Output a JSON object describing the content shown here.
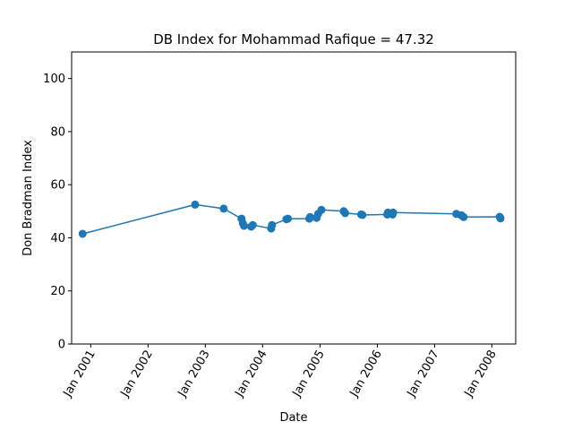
{
  "chart_data": {
    "type": "line",
    "title": "DB Index for Mohammad Rafique = 47.32",
    "xlabel": "Date",
    "ylabel": "Don Bradman Index",
    "ylim": [
      0,
      110
    ],
    "xlim": [
      "2000-09-01",
      "2008-06-01"
    ],
    "x_ticks": [
      {
        "date": "2001-01-01",
        "label": "Jan 2001"
      },
      {
        "date": "2002-01-01",
        "label": "Jan 2002"
      },
      {
        "date": "2003-01-01",
        "label": "Jan 2003"
      },
      {
        "date": "2004-01-01",
        "label": "Jan 2004"
      },
      {
        "date": "2005-01-01",
        "label": "Jan 2005"
      },
      {
        "date": "2006-01-01",
        "label": "Jan 2006"
      },
      {
        "date": "2007-01-01",
        "label": "Jan 2007"
      },
      {
        "date": "2008-01-01",
        "label": "Jan 2008"
      }
    ],
    "y_ticks": [
      0,
      20,
      40,
      60,
      80,
      100
    ],
    "grid": false,
    "color": "#1f77b4",
    "series": [
      {
        "points": [
          {
            "x": "2000-11-10",
            "y": 41.5
          },
          {
            "x": "2002-10-28",
            "y": 52.5
          },
          {
            "x": "2003-04-28",
            "y": 51.0
          },
          {
            "x": "2003-08-20",
            "y": 47.2
          },
          {
            "x": "2003-08-28",
            "y": 45.5
          },
          {
            "x": "2003-09-05",
            "y": 44.5
          },
          {
            "x": "2003-10-20",
            "y": 44.2
          },
          {
            "x": "2003-10-30",
            "y": 44.8
          },
          {
            "x": "2004-02-25",
            "y": 43.5
          },
          {
            "x": "2004-03-01",
            "y": 44.8
          },
          {
            "x": "2004-06-01",
            "y": 47.0
          },
          {
            "x": "2004-06-10",
            "y": 47.2
          },
          {
            "x": "2004-10-25",
            "y": 47.2
          },
          {
            "x": "2004-10-30",
            "y": 47.8
          },
          {
            "x": "2004-12-10",
            "y": 47.5
          },
          {
            "x": "2004-12-20",
            "y": 49.0
          },
          {
            "x": "2005-01-10",
            "y": 50.5
          },
          {
            "x": "2005-06-01",
            "y": 50.0
          },
          {
            "x": "2005-06-10",
            "y": 49.3
          },
          {
            "x": "2005-09-20",
            "y": 48.8
          },
          {
            "x": "2005-09-28",
            "y": 48.6
          },
          {
            "x": "2006-03-05",
            "y": 48.8
          },
          {
            "x": "2006-03-10",
            "y": 49.5
          },
          {
            "x": "2006-04-08",
            "y": 48.8
          },
          {
            "x": "2006-04-12",
            "y": 49.5
          },
          {
            "x": "2007-05-20",
            "y": 49.0
          },
          {
            "x": "2007-06-20",
            "y": 48.5
          },
          {
            "x": "2007-07-05",
            "y": 47.8
          },
          {
            "x": "2008-02-20",
            "y": 47.9
          },
          {
            "x": "2008-02-25",
            "y": 47.3
          }
        ]
      }
    ]
  }
}
